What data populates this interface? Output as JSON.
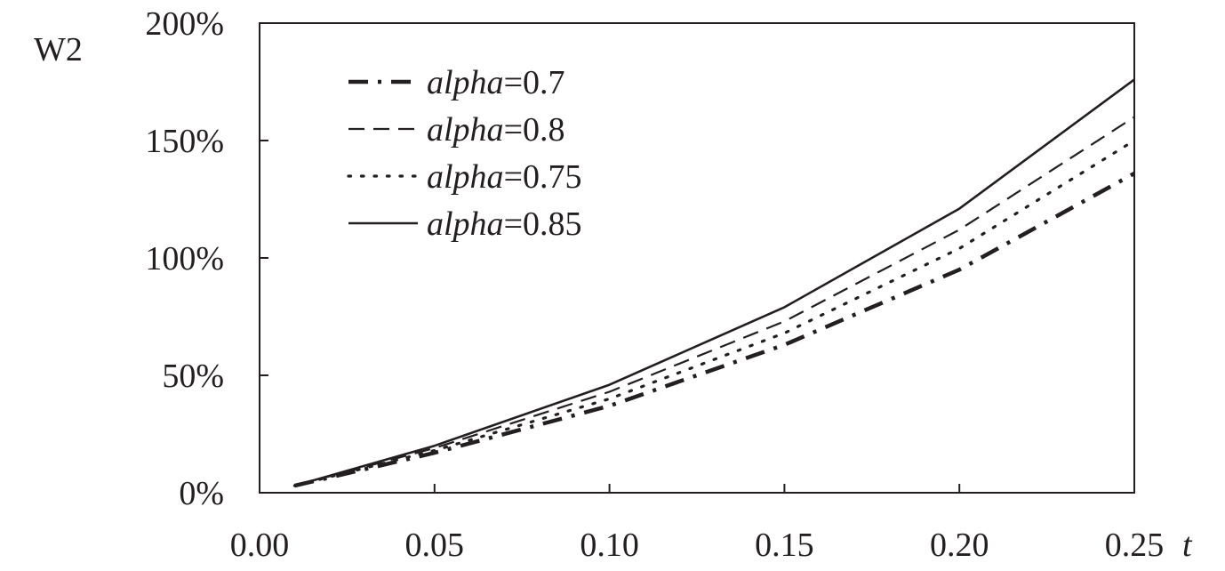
{
  "chart_data": {
    "type": "line",
    "title": "",
    "ylabel": "W2",
    "xlabel": "t",
    "x": [
      0.01,
      0.05,
      0.1,
      0.15,
      0.2,
      0.25
    ],
    "xlim": [
      0.0,
      0.25
    ],
    "ylim": [
      0,
      200
    ],
    "x_ticks": [
      "0.00",
      "0.05",
      "0.10",
      "0.15",
      "0.20",
      "0.25"
    ],
    "y_ticks": [
      "0%",
      "50%",
      "100%",
      "150%",
      "200%"
    ],
    "y_tick_values": [
      0,
      50,
      100,
      150,
      200
    ],
    "grid": false,
    "legend_position": "top-left",
    "series": [
      {
        "name_var": "alpha",
        "name_val": "=0.7",
        "style": "dash-dot-bold",
        "values": [
          3,
          17,
          37,
          63,
          95,
          136
        ]
      },
      {
        "name_var": "alpha",
        "name_val": "=0.8",
        "style": "dashed",
        "values": [
          3,
          19,
          43,
          73,
          112,
          160
        ]
      },
      {
        "name_var": "alpha",
        "name_val": "=0.75",
        "style": "dotted",
        "values": [
          3,
          18,
          40,
          68,
          104,
          150
        ]
      },
      {
        "name_var": "alpha",
        "name_val": "=0.85",
        "style": "solid",
        "values": [
          3,
          20,
          46,
          79,
          121,
          176
        ]
      }
    ]
  }
}
